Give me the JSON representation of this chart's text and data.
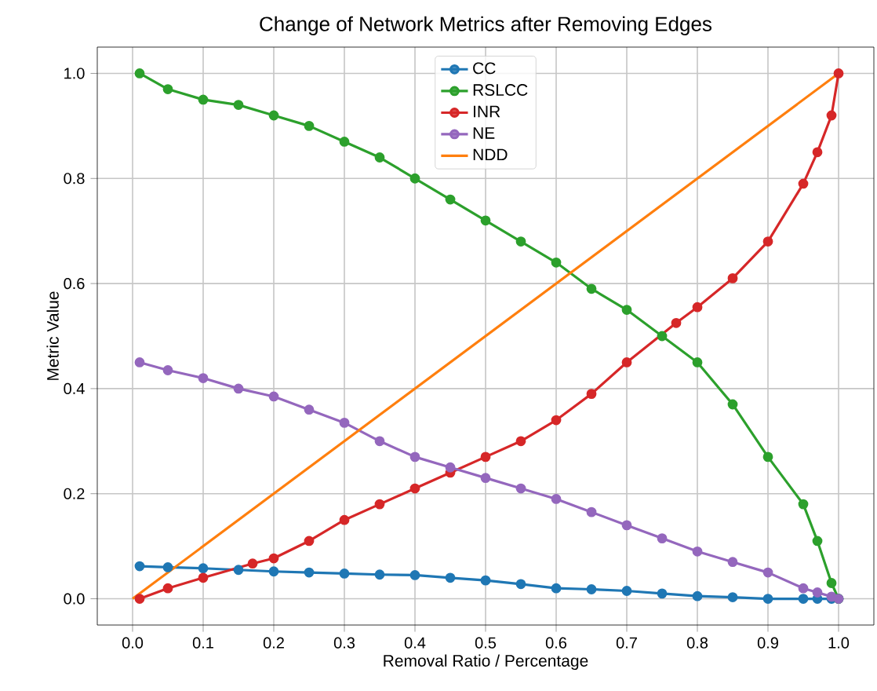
{
  "chart_data": {
    "type": "line",
    "title": "Change of Network Metrics after Removing Edges",
    "xlabel": "Removal Ratio / Percentage",
    "ylabel": "Metric Value",
    "x": [
      0.01,
      0.05,
      0.1,
      0.15,
      0.2,
      0.25,
      0.3,
      0.35,
      0.4,
      0.45,
      0.5,
      0.55,
      0.6,
      0.65,
      0.7,
      0.75,
      0.8,
      0.85,
      0.9,
      0.95,
      0.97,
      0.99,
      1.0
    ],
    "series": [
      {
        "name": "CC",
        "color": "#1f77b4",
        "values": [
          0.062,
          0.06,
          0.058,
          0.055,
          0.052,
          0.05,
          0.048,
          0.046,
          0.045,
          0.04,
          0.035,
          0.028,
          0.02,
          0.018,
          0.015,
          0.01,
          0.005,
          0.003,
          0.0,
          0.0,
          0.0,
          0.0,
          0.0
        ]
      },
      {
        "name": "RSLCC",
        "color": "#2ca02c",
        "values": [
          1.0,
          0.97,
          0.95,
          0.94,
          0.92,
          0.9,
          0.87,
          0.84,
          0.8,
          0.76,
          0.72,
          0.68,
          0.64,
          0.59,
          0.55,
          0.5,
          0.45,
          0.37,
          0.27,
          0.18,
          0.11,
          0.03,
          0.0
        ]
      },
      {
        "name": "INR",
        "color": "#d62728",
        "x": [
          0.01,
          0.05,
          0.1,
          0.17,
          0.2,
          0.25,
          0.3,
          0.35,
          0.4,
          0.45,
          0.5,
          0.55,
          0.6,
          0.65,
          0.7,
          0.77,
          0.8,
          0.85,
          0.9,
          0.95,
          0.97,
          0.99,
          1.0
        ],
        "values": [
          0.0,
          0.02,
          0.04,
          0.067,
          0.077,
          0.11,
          0.15,
          0.18,
          0.21,
          0.24,
          0.27,
          0.3,
          0.34,
          0.39,
          0.45,
          0.525,
          0.555,
          0.61,
          0.68,
          0.79,
          0.85,
          0.92,
          1.0
        ]
      },
      {
        "name": "NE",
        "color": "#9467bd",
        "values": [
          0.45,
          0.435,
          0.42,
          0.4,
          0.385,
          0.36,
          0.335,
          0.3,
          0.27,
          0.25,
          0.23,
          0.21,
          0.19,
          0.165,
          0.14,
          0.115,
          0.09,
          0.07,
          0.05,
          0.02,
          0.012,
          0.004,
          0.0
        ]
      },
      {
        "name": "NDD",
        "color": "#ff7f0e",
        "marker": "none",
        "x": [
          0.0,
          1.0
        ],
        "values": [
          0.0,
          1.0
        ]
      }
    ],
    "xlim": [
      -0.05,
      1.05
    ],
    "ylim": [
      -0.05,
      1.05
    ],
    "xticks": [
      {
        "value": 0,
        "label": "0.0"
      },
      {
        "value": 0.1,
        "label": "0.1"
      },
      {
        "value": 0.2,
        "label": "0.2"
      },
      {
        "value": 0.3,
        "label": "0.3"
      },
      {
        "value": 0.4,
        "label": "0.4"
      },
      {
        "value": 0.5,
        "label": "0.5"
      },
      {
        "value": 0.6,
        "label": "0.6"
      },
      {
        "value": 0.7,
        "label": "0.7"
      },
      {
        "value": 0.8,
        "label": "0.8"
      },
      {
        "value": 0.9,
        "label": "0.9"
      },
      {
        "value": 1,
        "label": "1.0"
      }
    ],
    "yticks": [
      {
        "value": 0,
        "label": "0.0"
      },
      {
        "value": 0.2,
        "label": "0.2"
      },
      {
        "value": 0.4,
        "label": "0.4"
      },
      {
        "value": 0.6,
        "label": "0.6"
      },
      {
        "value": 0.8,
        "label": "0.8"
      },
      {
        "value": 1,
        "label": "1.0"
      }
    ],
    "grid": true,
    "legend": "top",
    "marker": "circle"
  }
}
